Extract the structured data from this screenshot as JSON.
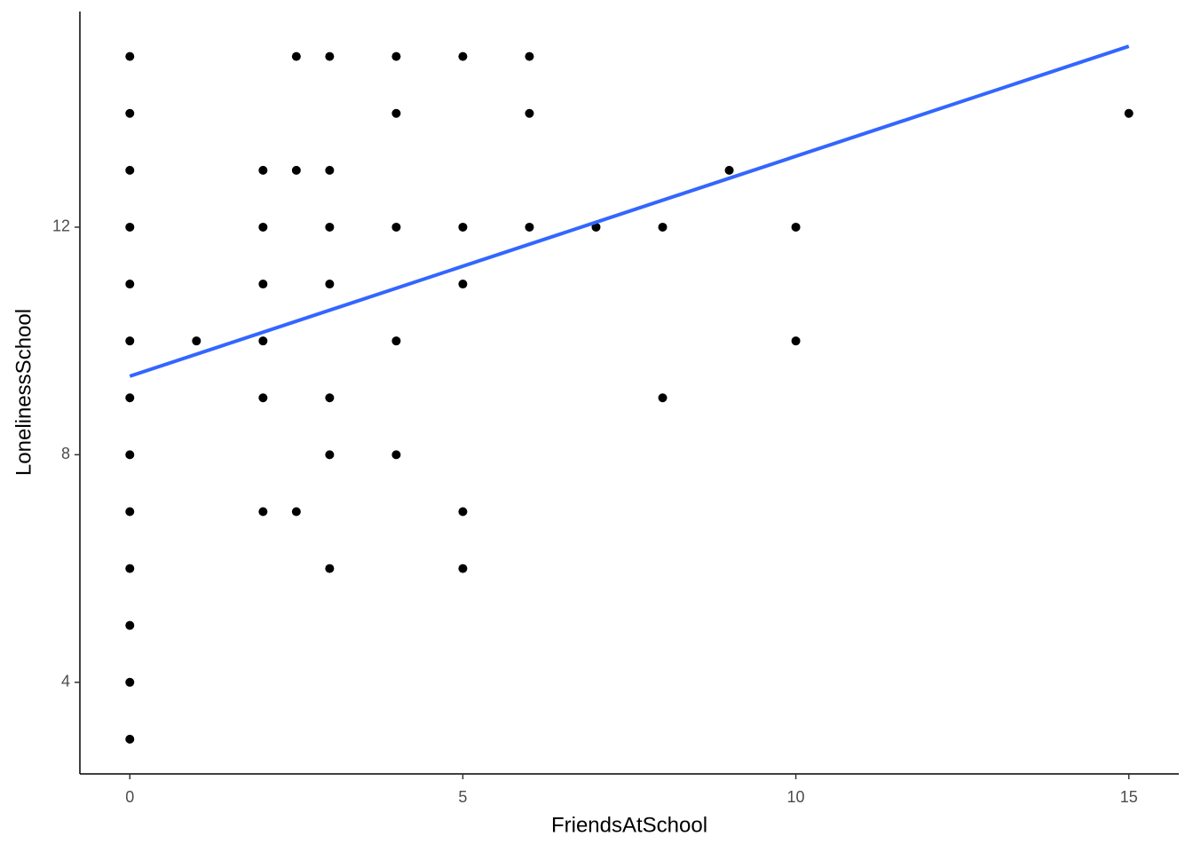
{
  "chart_data": {
    "type": "scatter",
    "x_label": "FriendsAtSchool",
    "y_label": "LonelinessSchool",
    "x": [
      0,
      0,
      0,
      0,
      0,
      0,
      0,
      0,
      0,
      0,
      0,
      0,
      0,
      1,
      2,
      2,
      2,
      2,
      2,
      2,
      2.5,
      2.5,
      2.5,
      3,
      3,
      3,
      3,
      3,
      3,
      3,
      4,
      4,
      4,
      4,
      4,
      5,
      5,
      5,
      5,
      5,
      6,
      6,
      6,
      7,
      8,
      8,
      9,
      10,
      10,
      15
    ],
    "y": [
      15,
      14,
      13,
      12,
      11,
      10,
      9,
      8,
      7,
      6,
      5,
      4,
      3,
      10,
      13,
      12,
      11,
      10,
      9,
      7,
      15,
      13,
      7,
      15,
      13,
      12,
      11,
      9,
      8,
      6,
      15,
      14,
      12,
      10,
      8,
      15,
      12,
      11,
      7,
      6,
      15,
      14,
      12,
      12,
      12,
      9,
      13,
      12,
      10,
      14
    ],
    "color": "#000000",
    "fit": {
      "x": [
        0,
        15
      ],
      "y": [
        9.38,
        15.18
      ],
      "color": "#3366ff"
    },
    "xlim": [
      -0.75,
      15.75
    ],
    "xticks": [
      0,
      5,
      10,
      15
    ],
    "ylim": [
      2.39,
      15.79
    ],
    "yticks": [
      4,
      8,
      12
    ],
    "grid": false
  }
}
